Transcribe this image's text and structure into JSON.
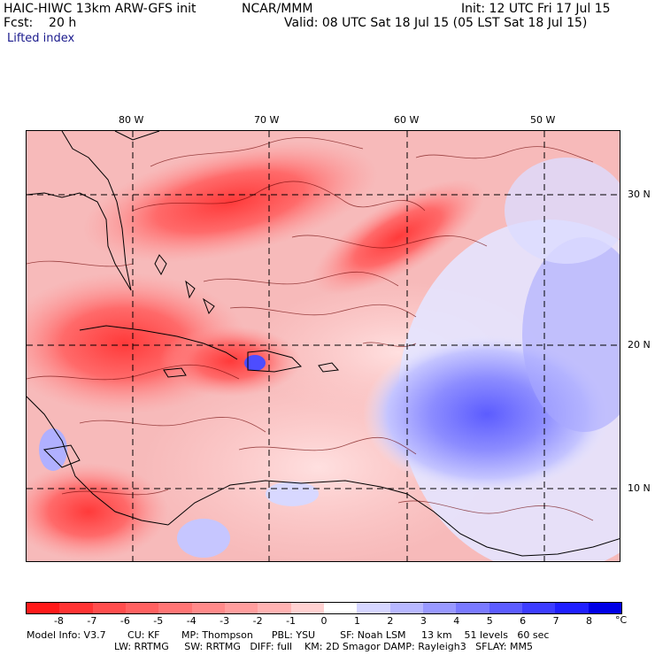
{
  "header": {
    "model_title": "HAIC-HIWC 13km ARW-GFS init",
    "org": "NCAR/MMM",
    "init_label": "Init: 12 UTC Fri 17 Jul 15",
    "fcst_label": "Fcst:    20 h",
    "valid_label": "Valid: 08 UTC Sat 18 Jul 15 (05 LST Sat 18 Jul 15)",
    "field_name": "Lifted index"
  },
  "map": {
    "lon_labels": [
      "80 W",
      "70 W",
      "60 W",
      "50 W"
    ],
    "lat_labels": [
      "30 N",
      "20 N",
      "10 N"
    ]
  },
  "colorbar": {
    "tick_labels": [
      "-8",
      "-7",
      "-6",
      "-5",
      "-4",
      "-3",
      "-2",
      "-1",
      "0",
      "1",
      "2",
      "3",
      "4",
      "5",
      "6",
      "7",
      "8"
    ],
    "unit": "°C",
    "colors": [
      "#ff1a1a",
      "#ff3333",
      "#ff4d4d",
      "#ff6161",
      "#ff7575",
      "#ff8a8a",
      "#ff9e9e",
      "#ffb3b3",
      "#ffd1d1",
      "#ffffff",
      "#d6d6ff",
      "#b8b8ff",
      "#9999ff",
      "#7a7aff",
      "#5c5cff",
      "#3d3dff",
      "#1f1fff",
      "#0000e6"
    ]
  },
  "footer": {
    "line1": "Model Info: V3.7       CU: KF       MP: Thompson      PBL: YSU        SF: Noah LSM     13 km    51 levels   60 sec",
    "line2": "LW: RRTMG     SW: RRTMG   DIFF: full    KM: 2D Smagor DAMP: Rayleigh3   SFLAY: MM5"
  }
}
